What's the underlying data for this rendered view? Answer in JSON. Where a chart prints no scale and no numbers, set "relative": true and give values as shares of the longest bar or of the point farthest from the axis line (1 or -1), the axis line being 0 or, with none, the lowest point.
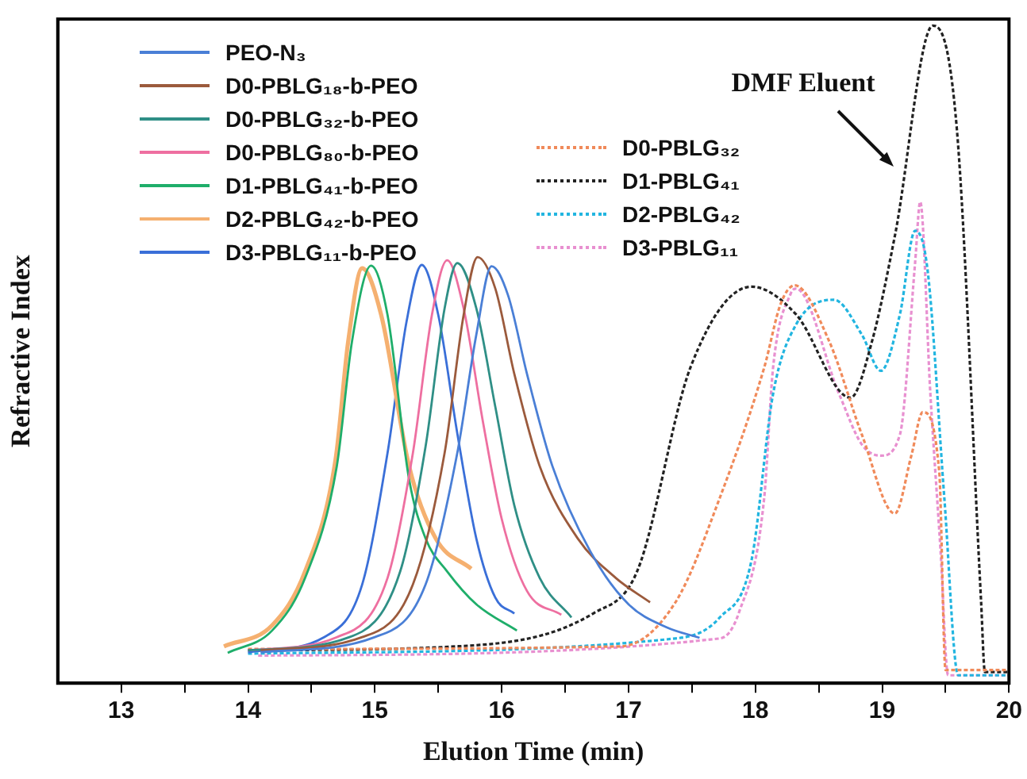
{
  "chart_data": {
    "type": "line",
    "xlabel": "Elution Time (min)",
    "ylabel": "Refractive Index",
    "relative": true,
    "xlim": [
      12.5,
      20
    ],
    "xticks": [
      13,
      {
        "value": 13.5,
        "label": null
      },
      14,
      {
        "value": 14.5,
        "label": null
      },
      15,
      {
        "value": 15.5,
        "label": null
      },
      16,
      {
        "value": 16.5,
        "label": null
      },
      17,
      {
        "value": 17.5,
        "label": null
      },
      18,
      {
        "value": 18.5,
        "label": null
      },
      19,
      {
        "value": 19.5,
        "label": null
      },
      20
    ],
    "grid": false,
    "legend": "top left",
    "marker": "none",
    "annotations": [
      "DMF Eluent"
    ],
    "series": [
      {
        "name": "PEO-N₃",
        "color": "#4a7fd6",
        "line_style": "solid",
        "x": [
          14.1,
          15.0,
          15.4,
          15.65,
          15.8,
          15.92,
          16.05,
          16.2,
          16.4,
          16.7,
          17.0,
          17.3,
          17.56
        ],
        "values": [
          0.047,
          0.07,
          0.15,
          0.35,
          0.53,
          0.634,
          0.59,
          0.47,
          0.33,
          0.2,
          0.12,
          0.085,
          0.069
        ]
      },
      {
        "name": "D0-PBLG₁₈-b-PEO",
        "color": "#9b5a3c",
        "line_style": "solid",
        "x": [
          14.1,
          14.9,
          15.3,
          15.55,
          15.7,
          15.81,
          15.95,
          16.1,
          16.3,
          16.6,
          16.9,
          17.17
        ],
        "values": [
          0.05,
          0.07,
          0.15,
          0.35,
          0.56,
          0.648,
          0.6,
          0.47,
          0.33,
          0.22,
          0.16,
          0.123
        ]
      },
      {
        "name": "D0-PBLG₃₂-b-PEO",
        "color": "#2f8f86",
        "line_style": "solid",
        "x": [
          14.0,
          14.8,
          15.2,
          15.4,
          15.55,
          15.65,
          15.8,
          15.95,
          16.1,
          16.3,
          16.55
        ],
        "values": [
          0.05,
          0.07,
          0.17,
          0.36,
          0.57,
          0.639,
          0.57,
          0.42,
          0.27,
          0.16,
          0.1
        ]
      },
      {
        "name": "D0-PBLG₈₀-b-PEO",
        "color": "#ee6fa0",
        "line_style": "solid",
        "x": [
          14.0,
          14.7,
          15.1,
          15.3,
          15.45,
          15.57,
          15.7,
          15.85,
          16.0,
          16.2,
          16.47
        ],
        "values": [
          0.05,
          0.07,
          0.16,
          0.35,
          0.56,
          0.643,
          0.57,
          0.4,
          0.25,
          0.14,
          0.104
        ]
      },
      {
        "name": "D1-PBLG₄₁-b-PEO",
        "color": "#1fae6a",
        "line_style": "solid",
        "x": [
          13.84,
          14.19,
          14.45,
          14.7,
          14.82,
          14.97,
          15.1,
          15.27,
          15.4,
          15.57,
          15.8,
          16.12
        ],
        "values": [
          0.046,
          0.08,
          0.16,
          0.33,
          0.52,
          0.635,
          0.56,
          0.31,
          0.22,
          0.17,
          0.12,
          0.08
        ]
      },
      {
        "name": "D2-PBLG₄₂-b-PEO",
        "color": "#f5b070",
        "line_style": "solid",
        "x": [
          13.81,
          14.19,
          14.45,
          14.69,
          14.79,
          14.9,
          15.05,
          15.27,
          15.48,
          15.76
        ],
        "values": [
          0.056,
          0.088,
          0.17,
          0.34,
          0.52,
          0.631,
          0.56,
          0.33,
          0.22,
          0.174
        ]
      },
      {
        "name": "D3-PBLG₁₁-b-PEO",
        "color": "#3a6fd8",
        "line_style": "solid",
        "x": [
          14.0,
          14.6,
          14.9,
          15.1,
          15.25,
          15.37,
          15.5,
          15.65,
          15.8,
          15.95,
          16.1
        ],
        "values": [
          0.047,
          0.07,
          0.15,
          0.35,
          0.55,
          0.636,
          0.56,
          0.38,
          0.22,
          0.13,
          0.106
        ]
      },
      {
        "name": "D0-PBLG₃₂",
        "color": "#f08a5a",
        "line_style": "dotted",
        "x": [
          14.0,
          16.94,
          17.37,
          17.72,
          18.07,
          18.2,
          18.31,
          18.58,
          18.84,
          19.1,
          19.23,
          19.32,
          19.45,
          19.5,
          20.0
        ],
        "values": [
          0.052,
          0.056,
          0.123,
          0.282,
          0.48,
          0.577,
          0.605,
          0.521,
          0.378,
          0.258,
          0.346,
          0.412,
          0.322,
          0.02,
          0.02
        ]
      },
      {
        "name": "D1-PBLG₄₁",
        "color": "#222222",
        "line_style": "dotted",
        "x": [
          14.0,
          15.65,
          16.73,
          17.07,
          17.49,
          17.97,
          18.32,
          18.75,
          18.92,
          19.1,
          19.4,
          19.59,
          19.78,
          19.81,
          20.0
        ],
        "values": [
          0.05,
          0.056,
          0.107,
          0.171,
          0.481,
          0.603,
          0.561,
          0.434,
          0.52,
          0.68,
          1.0,
          0.84,
          0.124,
          0.017,
          0.017
        ]
      },
      {
        "name": "D2-PBLG₄₂",
        "color": "#22b5e0",
        "line_style": "dotted",
        "x": [
          14.0,
          17.37,
          17.72,
          17.97,
          18.14,
          18.32,
          18.62,
          18.84,
          18.99,
          19.14,
          19.26,
          19.36,
          19.49,
          19.6,
          20.0
        ],
        "values": [
          0.045,
          0.068,
          0.1,
          0.187,
          0.44,
          0.545,
          0.583,
          0.53,
          0.475,
          0.561,
          0.688,
          0.625,
          0.282,
          0.012,
          0.012
        ]
      },
      {
        "name": "D3-PBLG₁₁",
        "color": "#e890d0",
        "line_style": "dotted",
        "x": [
          14.08,
          17.72,
          17.87,
          18.07,
          18.14,
          18.28,
          18.32,
          18.66,
          18.84,
          18.99,
          19.14,
          19.26,
          19.3,
          19.38,
          19.46,
          19.52,
          20.0
        ],
        "values": [
          0.042,
          0.068,
          0.107,
          0.282,
          0.48,
          0.593,
          0.6,
          0.44,
          0.363,
          0.346,
          0.378,
          0.64,
          0.732,
          0.44,
          0.203,
          0.012,
          0.012
        ]
      }
    ]
  }
}
